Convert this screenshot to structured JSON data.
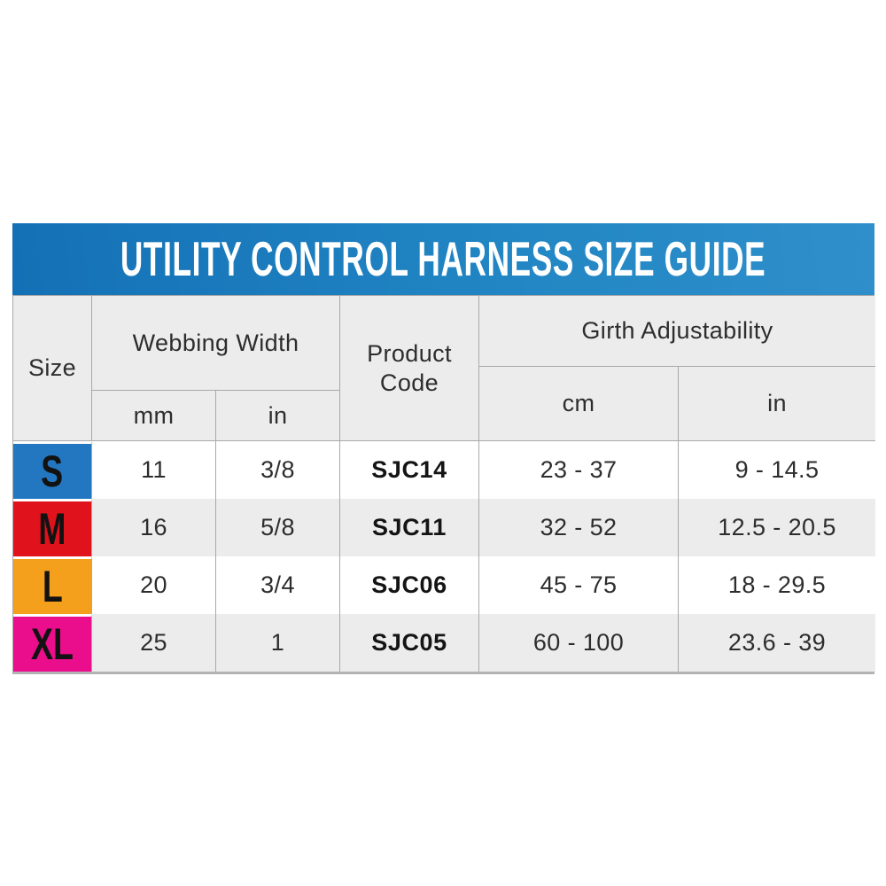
{
  "title": "UTILITY CONTROL HARNESS SIZE GUIDE",
  "colors": {
    "banner_gradient_start": "#1470b6",
    "banner_gradient_end": "#2f8fca",
    "header_gray": "#ececec",
    "alt_row_gray": "#ececec",
    "border_gray": "#a9a9a9",
    "size_s_blue": "#2377c0",
    "size_m_red": "#e0121b",
    "size_l_orange": "#f5a01d",
    "size_xl_pink": "#ea0d8c"
  },
  "table": {
    "headers": {
      "size": "Size",
      "webbing_width": "Webbing Width",
      "webbing_unit_mm": "mm",
      "webbing_unit_in": "in",
      "product_code": "Product Code",
      "girth_adjustability": "Girth Adjustability",
      "girth_unit_cm": "cm",
      "girth_unit_in": "in"
    },
    "rows": [
      {
        "size": "S",
        "color": "#2377c0",
        "webbing_mm": "11",
        "webbing_in": "3/8",
        "product_code": "SJC14",
        "girth_cm": "23 - 37",
        "girth_in": "9 - 14.5"
      },
      {
        "size": "M",
        "color": "#e0121b",
        "webbing_mm": "16",
        "webbing_in": "5/8",
        "product_code": "SJC11",
        "girth_cm": "32 - 52",
        "girth_in": "12.5 - 20.5"
      },
      {
        "size": "L",
        "color": "#f5a01d",
        "webbing_mm": "20",
        "webbing_in": "3/4",
        "product_code": "SJC06",
        "girth_cm": "45 - 75",
        "girth_in": "18 - 29.5"
      },
      {
        "size": "XL",
        "color": "#ea0d8c",
        "webbing_mm": "25",
        "webbing_in": "1",
        "product_code": "SJC05",
        "girth_cm": "60 - 100",
        "girth_in": "23.6 - 39"
      }
    ]
  },
  "chart_data": {
    "type": "table",
    "title": "UTILITY CONTROL HARNESS SIZE GUIDE",
    "columns": [
      "Size",
      "Webbing Width (mm)",
      "Webbing Width (in)",
      "Product Code",
      "Girth Adjustability (cm)",
      "Girth Adjustability (in)"
    ],
    "rows": [
      [
        "S",
        11,
        "3/8",
        "SJC14",
        "23 - 37",
        "9 - 14.5"
      ],
      [
        "M",
        16,
        "5/8",
        "SJC11",
        "32 - 52",
        "12.5 - 20.5"
      ],
      [
        "L",
        20,
        "3/4",
        "SJC06",
        "45 - 75",
        "18 - 29.5"
      ],
      [
        "XL",
        25,
        "1",
        "SJC05",
        "60 - 100",
        "23.6 - 39"
      ]
    ]
  }
}
